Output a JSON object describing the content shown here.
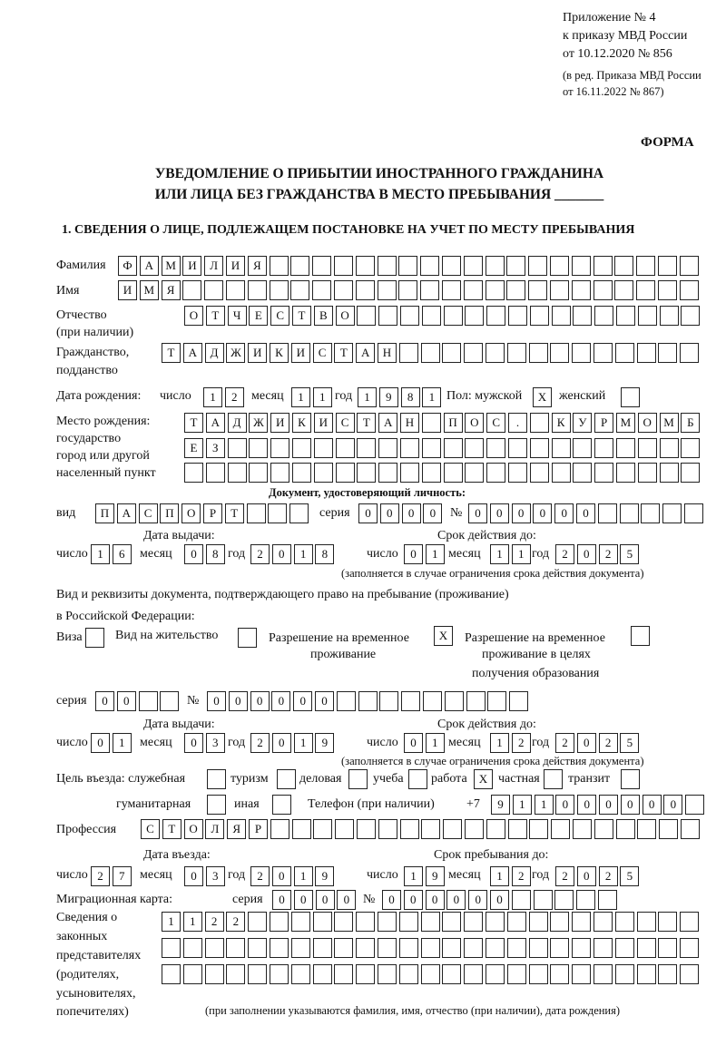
{
  "header": {
    "line1": "Приложение № 4",
    "line2": "к приказу МВД России",
    "line3": "от 10.12.2020 № 856",
    "line4": "(в ред. Приказа МВД России",
    "line5": "от 16.11.2022 № 867)",
    "forma": "ФОРМА",
    "title1": "УВЕДОМЛЕНИЕ О ПРИБЫТИИ ИНОСТРАННОГО ГРАЖДАНИНА",
    "title2": "ИЛИ ЛИЦА БЕЗ ГРАЖДАНСТВА В МЕСТО ПРЕБЫВАНИЯ _______",
    "section1": "1. СВЕДЕНИЯ О ЛИЦЕ, ПОДЛЕЖАЩЕМ ПОСТАНОВКЕ НА УЧЕТ ПО МЕСТУ ПРЕБЫВАНИЯ"
  },
  "labels": {
    "surname": "Фамилия",
    "name": "Имя",
    "patronymic1": "Отчество",
    "patronymic2": "(при наличии)",
    "citizenship1": "Гражданство,",
    "citizenship2": "подданство",
    "birth_date": "Дата рождения:",
    "day": "число",
    "month": "месяц",
    "year": "год",
    "sex": "Пол: мужской",
    "female": "женский",
    "birthplace1": "Место рождения:",
    "birthplace2": "государство",
    "birthplace3": "город или другой",
    "birthplace4": "населенный пункт",
    "id_doc": "Документ, удостоверяющий личность:",
    "kind": "вид",
    "series": "серия",
    "number": "№",
    "issue_date": "Дата выдачи:",
    "valid_until": "Срок действия до:",
    "validity_note": "(заполняется в случае ограничения срока действия документа)",
    "residence_doc1": "Вид и реквизиты документа, подтверждающего право на пребывание (проживание)",
    "residence_doc2": "в Российской Федерации:",
    "visa": "Виза",
    "residence_permit": "Вид на жительство",
    "temp_residence1": "Разрешение на временное",
    "temp_residence2": "проживание",
    "temp_edu1": "Разрешение на временное",
    "temp_edu2": "проживание в целях",
    "temp_edu3": "получения образования",
    "purpose": "Цель въезда: служебная",
    "tourism": "туризм",
    "business": "деловая",
    "study": "учеба",
    "work": "работа",
    "private": "частная",
    "transit": "транзит",
    "humanitarian": "гуманитарная",
    "other": "иная",
    "phone": "Телефон (при наличии)",
    "phone_prefix": "+7",
    "profession": "Профессия",
    "entry_date": "Дата въезда:",
    "stay_until": "Срок пребывания до:",
    "migration_card": "Миграционная карта:",
    "reps1": "Сведения о",
    "reps2": "законных",
    "reps3": "представителях",
    "reps4": "(родителях,",
    "reps5": "усыновителях,",
    "reps6": "попечителях)",
    "reps_note": "(при заполнении указываются фамилия, имя, отчество (при наличии), дата рождения)"
  },
  "values": {
    "surname": "ФАМИЛИЯ",
    "name": "ИМЯ",
    "patronymic": "ОТЧЕСТВО",
    "citizenship": "ТАДЖИКИСТАН",
    "birth_day": "12",
    "birth_month": "11",
    "birth_year": "1981",
    "sex_male": "X",
    "sex_female": "",
    "birthplace1": "ТАДЖИКИСТАН ПОС. КУРМОМБ",
    "birthplace2": "ЕЗ",
    "birthplace3": "",
    "doc_kind": "ПАСПОРТ",
    "doc_series": "0000",
    "doc_number": "000000",
    "doc_issue_day": "16",
    "doc_issue_month": "08",
    "doc_issue_year": "2018",
    "doc_valid_day": "01",
    "doc_valid_month": "11",
    "doc_valid_year": "2025",
    "visa": "",
    "residence_permit": "",
    "temp_residence": "X",
    "temp_edu": "",
    "res_series": "00",
    "res_number": "000000",
    "res_issue_day": "01",
    "res_issue_month": "03",
    "res_issue_year": "2019",
    "res_valid_day": "01",
    "res_valid_month": "12",
    "res_valid_year": "2025",
    "p_service": "",
    "p_tourism": "",
    "p_business": "",
    "p_study": "",
    "p_work": "X",
    "p_private": "",
    "p_transit": "",
    "p_humanitarian": "",
    "p_other": "",
    "phone": "911000000",
    "profession": "СТОЛЯР",
    "entry_day": "27",
    "entry_month": "03",
    "entry_year": "2019",
    "stay_day": "19",
    "stay_month": "12",
    "stay_year": "2025",
    "mc_series": "0000",
    "mc_number": "000000",
    "reps1": "1122",
    "reps2": "",
    "reps3": ""
  }
}
